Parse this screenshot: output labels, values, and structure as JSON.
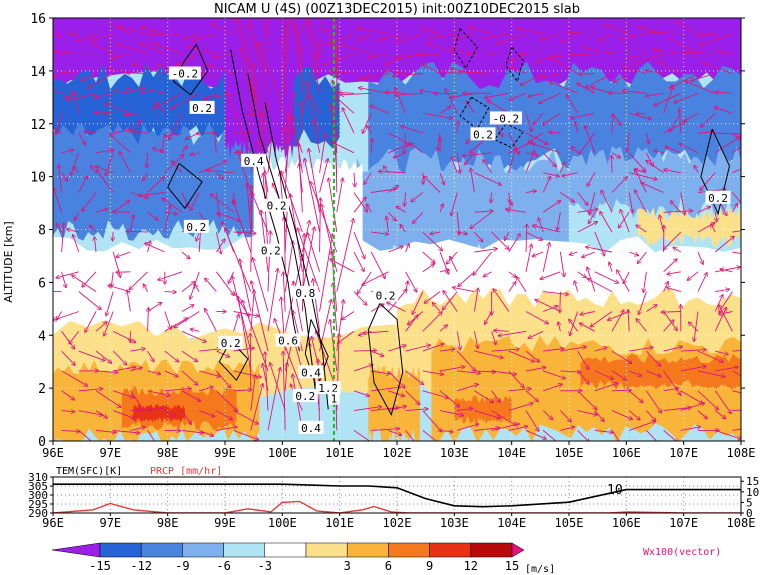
{
  "title": "NICAM U (4S) (00Z13DEC2015) init:00Z10DEC2015 slab",
  "main_panel": {
    "ylabel": "ALTITUDE [km]",
    "yticks": [
      "0",
      "2",
      "4",
      "6",
      "8",
      "10",
      "12",
      "14",
      "16"
    ],
    "xticks": [
      "96E",
      "97E",
      "98E",
      "99E",
      "100E",
      "101E",
      "102E",
      "103E",
      "104E",
      "105E",
      "106E",
      "107E",
      "108E"
    ],
    "contour_labels": [
      "-0.2",
      "0.2",
      "0.4",
      "0.2",
      "0.2",
      "0.2",
      "0.8",
      "0.2",
      "0.6",
      "0.4",
      "1.2",
      "0.2",
      "1",
      "0.4",
      "0.2",
      "-0.2",
      "0.2",
      "0.2"
    ]
  },
  "bottom_panel": {
    "temp_label": "TEM(SFC)[K]",
    "prcp_label": "PRCP [mm/hr]",
    "left_ticks": [
      "310",
      "305",
      "300",
      "295",
      "290"
    ],
    "right_ticks": [
      "15",
      "10",
      "5",
      "0"
    ],
    "annotation": "10",
    "xticks": [
      "96E",
      "97E",
      "98E",
      "99E",
      "100E",
      "101E",
      "102E",
      "103E",
      "104E",
      "105E",
      "106E",
      "107E",
      "108E"
    ]
  },
  "colorbar": {
    "labels": [
      "-15",
      "-12",
      "-9",
      "-6",
      "-3",
      "3",
      "6",
      "9",
      "12",
      "15"
    ],
    "unit": "[m/s]",
    "vector_note": "Wx100(vector)",
    "colors": [
      "#9a1fe8",
      "#2563d6",
      "#4a82e0",
      "#7fb0ee",
      "#b0e4f5",
      "#ffffff",
      "#fde08a",
      "#f9b43a",
      "#f5791c",
      "#e83214",
      "#b80a0a",
      "#e0147a"
    ]
  },
  "colors": {
    "vector": "#e0147a",
    "precip_line": "#e83a3a",
    "temp_line": "#000000",
    "meridian_line": "#19c219"
  },
  "chart_data": {
    "type": "heatmap",
    "title": "NICAM U (4S) (00Z13DEC2015) init:00Z10DEC2015 slab",
    "xlabel": "",
    "ylabel": "ALTITUDE [km]",
    "xlim": [
      96,
      108
    ],
    "ylim": [
      0,
      16
    ],
    "x_ticks": [
      96,
      97,
      98,
      99,
      100,
      101,
      102,
      103,
      104,
      105,
      106,
      107,
      108
    ],
    "y_ticks": [
      0,
      2,
      4,
      6,
      8,
      10,
      12,
      14,
      16
    ],
    "levels": [
      -15,
      -12,
      -9,
      -6,
      -3,
      3,
      6,
      9,
      12,
      15
    ],
    "grid": true,
    "regions": [
      {
        "level": "<-15",
        "lon": [
          96,
          108
        ],
        "alt": [
          13,
          16
        ]
      },
      {
        "level": "-9..-6",
        "lon": [
          96,
          99
        ],
        "alt": [
          8,
          13
        ]
      },
      {
        "level": "-6..-3",
        "lon": [
          101,
          108
        ],
        "alt": [
          7,
          12
        ]
      },
      {
        "level": "-3..3",
        "lon": [
          96,
          108
        ],
        "alt": [
          4,
          8
        ]
      },
      {
        "level": "3..6",
        "lon": [
          96,
          108
        ],
        "alt": [
          2,
          5
        ]
      },
      {
        "level": "6..9",
        "lon": [
          96,
          108
        ],
        "alt": [
          0.5,
          3.5
        ]
      },
      {
        "level": "9..12",
        "lon": [
          97.2,
          99.2
        ],
        "alt": [
          0.5,
          1.8
        ]
      },
      {
        "level": "12..15",
        "lon": [
          97.3,
          98.4
        ],
        "alt": [
          0.6,
          1.3
        ]
      }
    ],
    "meridian": 100.9,
    "surface_temperature": {
      "name": "TEM(SFC)[K]",
      "ylim": [
        290,
        310
      ],
      "x": [
        96,
        97,
        98,
        99,
        100,
        100.5,
        101,
        101.5,
        102,
        102.5,
        103,
        103.5,
        104,
        105,
        106,
        107,
        108
      ],
      "y": [
        306,
        306,
        306,
        306,
        306,
        305.5,
        305,
        305,
        304,
        298,
        294,
        293.5,
        294,
        296,
        303,
        303,
        303
      ]
    },
    "precipitation": {
      "name": "PRCP [mm/hr]",
      "ylim": [
        0,
        17
      ],
      "x": [
        96,
        96.7,
        97,
        97.4,
        98,
        99,
        99.4,
        99.8,
        100,
        100.3,
        100.6,
        101,
        101.4,
        101.6,
        101.9,
        102.2,
        102.5,
        103,
        104,
        105,
        105.7,
        106,
        107,
        108
      ],
      "y": [
        0,
        1.5,
        4.5,
        1.5,
        0,
        0,
        2,
        0.5,
        5,
        5.5,
        1,
        0,
        1.5,
        3,
        0.5,
        0,
        0,
        0,
        0,
        0,
        0,
        0.5,
        0,
        0
      ]
    }
  }
}
